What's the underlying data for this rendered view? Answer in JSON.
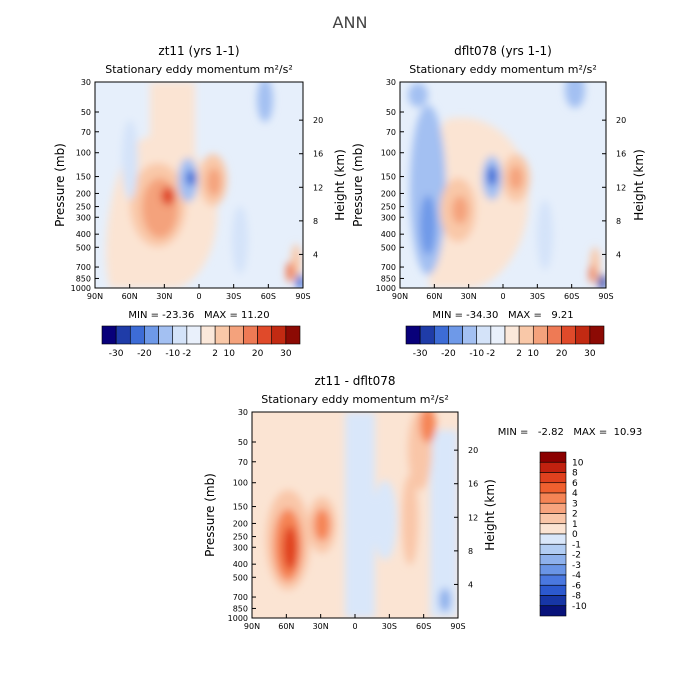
{
  "figure_title": "ANN",
  "chart_data": [
    {
      "type": "heatmap",
      "title": "zt11 (yrs 1-1)",
      "subtitle": "Stationary eddy momentum",
      "units": "m²/s²",
      "xlabel": "",
      "ylabel": "Pressure (mb)",
      "y2label": "Height (km)",
      "x_ticks": [
        "90N",
        "60N",
        "30N",
        "0",
        "30S",
        "60S",
        "90S"
      ],
      "y_ticks": [
        "30",
        "50",
        "70",
        "100",
        "150",
        "200",
        "250",
        "300",
        "400",
        "500",
        "700",
        "850",
        "1000"
      ],
      "y2_ticks": [
        "4",
        "8",
        "12",
        "16",
        "20"
      ],
      "stats": "MIN = -23.36   MAX = 11.20",
      "min": -23.36,
      "max": 11.2,
      "colorbar": [
        "-30",
        "-20",
        "-10",
        "-2",
        "2",
        "10",
        "20",
        "30"
      ]
    },
    {
      "type": "heatmap",
      "title": "dflt078 (yrs 1-1)",
      "subtitle": "Stationary eddy momentum",
      "units": "m²/s²",
      "xlabel": "",
      "ylabel": "Pressure (mb)",
      "y2label": "Height (km)",
      "x_ticks": [
        "90N",
        "60N",
        "30N",
        "0",
        "30S",
        "60S",
        "90S"
      ],
      "y_ticks": [
        "30",
        "50",
        "70",
        "100",
        "150",
        "200",
        "250",
        "300",
        "400",
        "500",
        "700",
        "850",
        "1000"
      ],
      "y2_ticks": [
        "4",
        "8",
        "12",
        "16",
        "20"
      ],
      "stats": "MIN = -34.30   MAX =   9.21",
      "min": -34.3,
      "max": 9.21,
      "colorbar": [
        "-30",
        "-20",
        "-10",
        "-2",
        "2",
        "10",
        "20",
        "30"
      ]
    },
    {
      "type": "heatmap",
      "title": "zt11 - dflt078",
      "subtitle": "Stationary eddy momentum",
      "units": "m²/s²",
      "xlabel": "",
      "ylabel": "Pressure (mb)",
      "y2label": "Height (km)",
      "x_ticks": [
        "90N",
        "60N",
        "30N",
        "0",
        "30S",
        "60S",
        "90S"
      ],
      "y_ticks": [
        "30",
        "50",
        "70",
        "100",
        "150",
        "200",
        "250",
        "300",
        "400",
        "500",
        "700",
        "850",
        "1000"
      ],
      "y2_ticks": [
        "4",
        "8",
        "12",
        "16",
        "20"
      ],
      "stats": "MIN =   -2.82   MAX =  10.93",
      "min": -2.82,
      "max": 10.93,
      "colorbar": [
        "10",
        "8",
        "6",
        "4",
        "3",
        "2",
        "1",
        "0",
        "-1",
        "-2",
        "-3",
        "-4",
        "-6",
        "-8",
        "-10"
      ]
    }
  ],
  "colors": {
    "palette14": [
      "#08007a",
      "#1f3ca8",
      "#3d6cd6",
      "#6e99e8",
      "#a3c0f2",
      "#d4e3f9",
      "#e9f0fb",
      "#fbe8da",
      "#f9c8a8",
      "#f4a27c",
      "#ee7a55",
      "#e04a2a",
      "#c22a12",
      "#8c0a04"
    ],
    "palette16": [
      "#8b0000",
      "#c1210f",
      "#e0411e",
      "#f0602f",
      "#f58455",
      "#f7a47e",
      "#f9c6a8",
      "#fbe4d3",
      "#d9e7fa",
      "#b2cdf3",
      "#8eb1ec",
      "#6a95e6",
      "#4a78e0",
      "#2c59cf",
      "#1736a6",
      "#08127a"
    ]
  }
}
